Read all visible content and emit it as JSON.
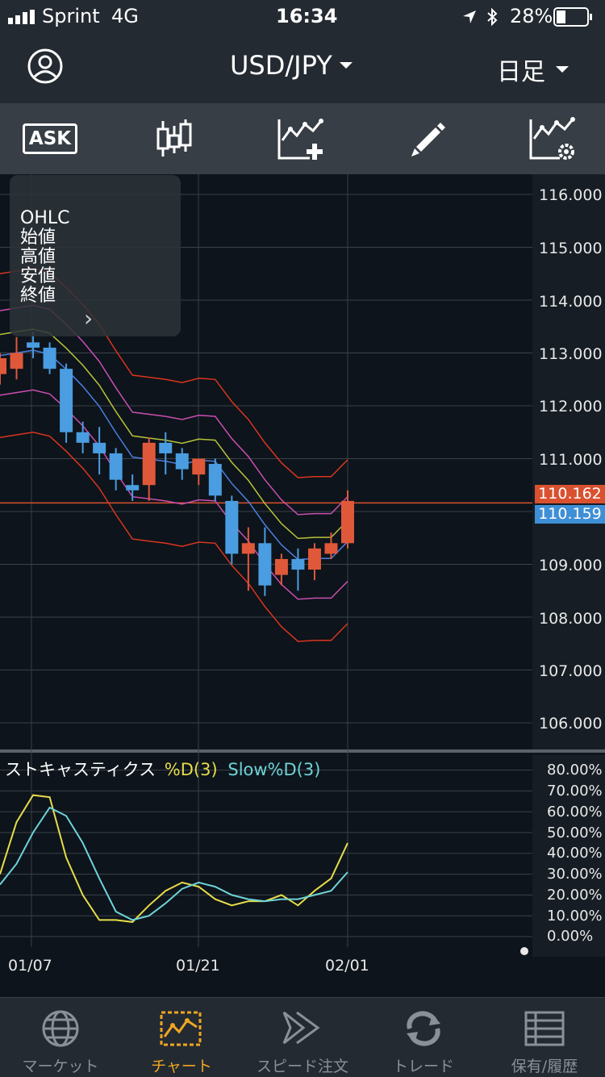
{
  "status_bar": {
    "carrier": "Sprint",
    "network": "4G",
    "time": "16:34",
    "battery": "28%"
  },
  "header": {
    "pair": "USD/JPY",
    "timeframe": "日足"
  },
  "toolbar": {
    "ask_label": "ASK"
  },
  "ohlc_panel": {
    "title": "OHLC",
    "open": "始値",
    "high": "高値",
    "low": "安値",
    "close": "終値",
    "arrow": "›"
  },
  "price_axis": [
    "116.000",
    "115.000",
    "114.000",
    "113.000",
    "112.000",
    "111.000",
    "109.000",
    "108.000",
    "107.000",
    "106.000"
  ],
  "price_tags": {
    "ask": "110.162",
    "bid": "110.159"
  },
  "stoch": {
    "title": "ストキャスティクス",
    "d_label": "%D(3)",
    "slow_label": "Slow%D(3)",
    "axis": [
      "80.00%",
      "70.00%",
      "60.00%",
      "50.00%",
      "40.00%",
      "30.00%",
      "20.00%",
      "10.00%",
      "0.00%"
    ]
  },
  "dates": [
    "01/07",
    "01/21",
    "02/01"
  ],
  "nav": [
    {
      "label": "マーケット"
    },
    {
      "label": "チャート"
    },
    {
      "label": "スピード注文"
    },
    {
      "label": "トレード"
    },
    {
      "label": "保有/履歴"
    }
  ],
  "colors": {
    "up": "#e0583a",
    "down": "#4a9de0",
    "accent": "#f0a522",
    "ma": "#b8c23a",
    "stoch_d": "#e6dc4a",
    "stoch_slow": "#6ed3d8"
  },
  "chart_data": [
    {
      "type": "candlestick",
      "ylim": [
        105.5,
        116.5
      ],
      "candles": [
        {
          "o": 112.6,
          "h": 113.0,
          "l": 112.4,
          "c": 112.9
        },
        {
          "o": 112.7,
          "h": 113.3,
          "l": 112.5,
          "c": 113.0
        },
        {
          "o": 113.2,
          "h": 113.4,
          "l": 112.9,
          "c": 113.1
        },
        {
          "o": 113.1,
          "h": 113.2,
          "l": 112.6,
          "c": 112.7
        },
        {
          "o": 112.7,
          "h": 112.8,
          "l": 111.3,
          "c": 111.5
        },
        {
          "o": 111.5,
          "h": 111.7,
          "l": 111.1,
          "c": 111.3
        },
        {
          "o": 111.3,
          "h": 111.6,
          "l": 110.7,
          "c": 111.1
        },
        {
          "o": 111.1,
          "h": 111.2,
          "l": 110.4,
          "c": 110.6
        },
        {
          "o": 110.5,
          "h": 110.7,
          "l": 110.2,
          "c": 110.4
        },
        {
          "o": 110.5,
          "h": 111.4,
          "l": 110.2,
          "c": 111.3
        },
        {
          "o": 111.3,
          "h": 111.5,
          "l": 110.7,
          "c": 111.1
        },
        {
          "o": 111.1,
          "h": 111.2,
          "l": 110.6,
          "c": 110.8
        },
        {
          "o": 110.7,
          "h": 111.0,
          "l": 110.5,
          "c": 111.0
        },
        {
          "o": 110.9,
          "h": 111.0,
          "l": 110.2,
          "c": 110.3
        },
        {
          "o": 110.2,
          "h": 110.3,
          "l": 109.0,
          "c": 109.2
        },
        {
          "o": 109.2,
          "h": 109.7,
          "l": 108.5,
          "c": 109.4
        },
        {
          "o": 109.4,
          "h": 109.7,
          "l": 108.4,
          "c": 108.6
        },
        {
          "o": 108.8,
          "h": 109.2,
          "l": 108.6,
          "c": 109.1
        },
        {
          "o": 109.1,
          "h": 109.3,
          "l": 108.5,
          "c": 108.9
        },
        {
          "o": 108.9,
          "h": 109.4,
          "l": 108.7,
          "c": 109.3
        },
        {
          "o": 109.2,
          "h": 109.6,
          "l": 109.1,
          "c": 109.4
        },
        {
          "o": 109.4,
          "h": 110.4,
          "l": 109.3,
          "c": 110.2
        }
      ],
      "current_price": 110.162
    },
    {
      "type": "line",
      "ylim": [
        0,
        85
      ],
      "series": [
        {
          "name": "%D(3)",
          "values": [
            30,
            55,
            68,
            67,
            38,
            20,
            8,
            8,
            7,
            15,
            22,
            26,
            24,
            18,
            15,
            17,
            17,
            20,
            15,
            22,
            28,
            45
          ]
        },
        {
          "name": "Slow%D(3)",
          "values": [
            25,
            35,
            50,
            62,
            58,
            45,
            28,
            12,
            8,
            10,
            16,
            23,
            26,
            24,
            20,
            18,
            17,
            18,
            18,
            20,
            22,
            31
          ]
        }
      ]
    }
  ]
}
